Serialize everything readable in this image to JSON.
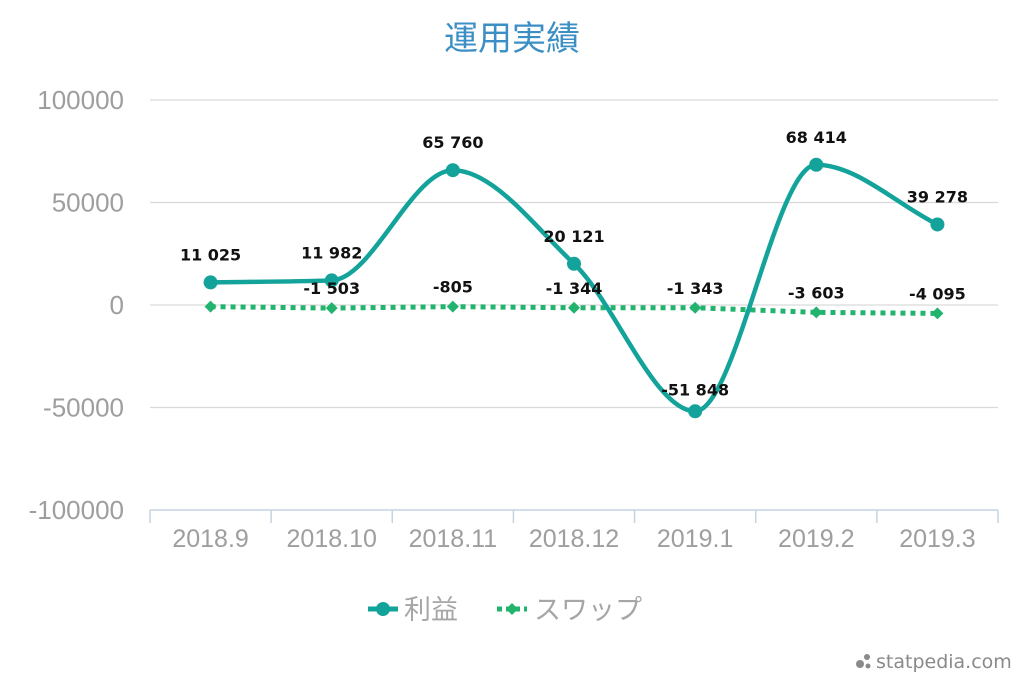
{
  "chart_data": {
    "type": "line",
    "title": "運用実績",
    "categories": [
      "2018.9",
      "2018.10",
      "2018.11",
      "2018.12",
      "2019.1",
      "2019.2",
      "2019.3"
    ],
    "ylim": [
      -100000,
      100000
    ],
    "yticks": [
      "100000",
      "50000",
      "0",
      "-50000",
      "-100000"
    ],
    "grid": true,
    "legend_position": "bottom",
    "series": [
      {
        "name": "利益",
        "color": "#13a39a",
        "marker": "circle",
        "line": "solid-smooth",
        "values": [
          11025,
          11982,
          65760,
          20121,
          -51848,
          68414,
          39278
        ],
        "labels": [
          "11 025",
          "11 982",
          "65 760",
          "20 121",
          "-51 848",
          "68 414",
          "39 278"
        ]
      },
      {
        "name": "スワップ",
        "color": "#22b46e",
        "marker": "diamond",
        "line": "dotted",
        "values": [
          -805,
          -1503,
          -805,
          -1344,
          -1343,
          -3603,
          -4095
        ],
        "labels": [
          "",
          "-1 503",
          "-805",
          "-1 344",
          "-1 343",
          "-3 603",
          "-4 095"
        ]
      }
    ]
  },
  "watermark": "statpedia.com"
}
